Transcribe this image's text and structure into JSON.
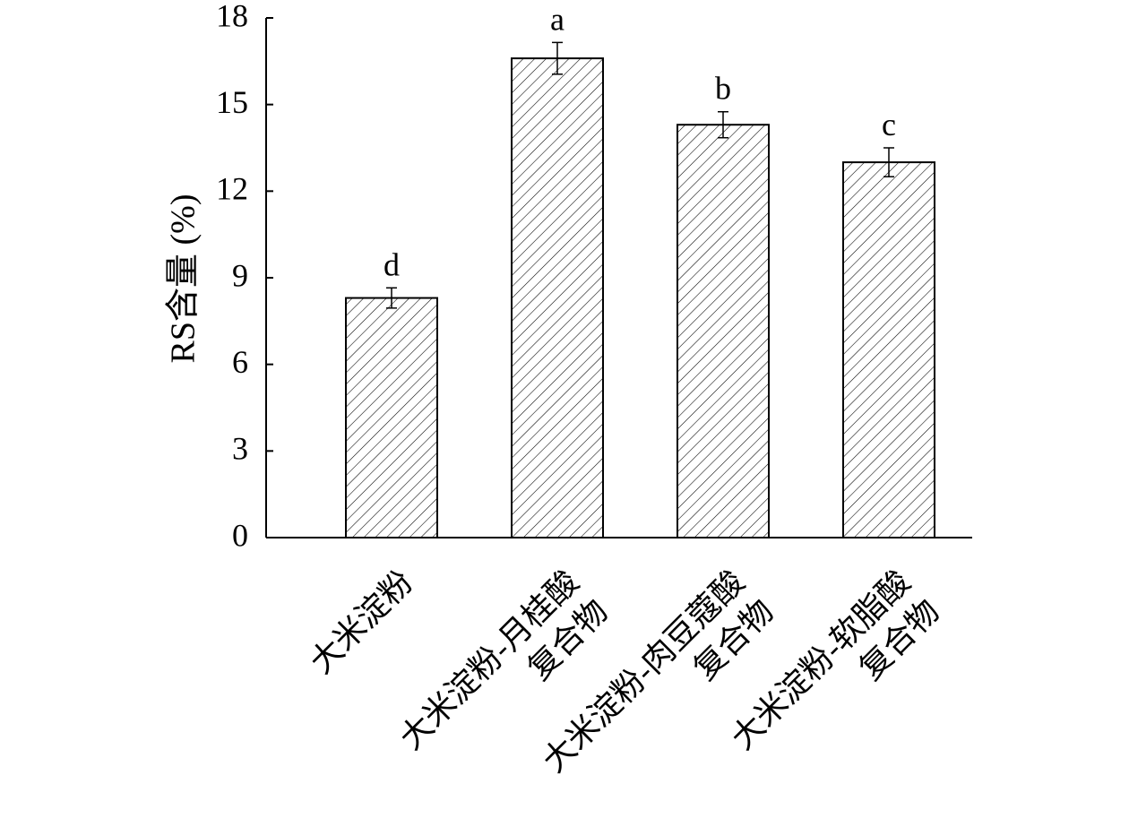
{
  "chart_data": {
    "type": "bar",
    "title": "",
    "xlabel": "",
    "ylabel": "RS含量 (%)",
    "ylim": [
      0,
      18
    ],
    "yticks": [
      0,
      3,
      6,
      9,
      12,
      15,
      18
    ],
    "grid": false,
    "categories": [
      [
        "大米淀粉"
      ],
      [
        "大米淀粉-月桂酸",
        "复合物"
      ],
      [
        "大米淀粉-肉豆蔻酸",
        "复合物"
      ],
      [
        "大米淀粉-软脂酸",
        "复合物"
      ]
    ],
    "values": [
      8.3,
      16.6,
      14.3,
      13.0
    ],
    "errors": [
      0.35,
      0.55,
      0.45,
      0.5
    ],
    "significance": [
      "d",
      "a",
      "b",
      "c"
    ],
    "bar_fill": "hatched",
    "colors": {
      "bar_edge": "#000000",
      "hatch": "#000000",
      "axis": "#000000"
    }
  }
}
